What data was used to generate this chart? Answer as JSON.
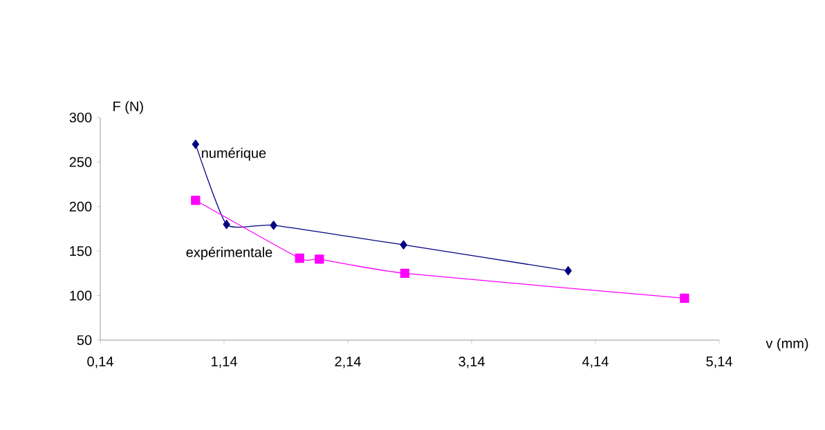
{
  "chart_data": {
    "type": "line",
    "xlabel": "v (mm)",
    "ylabel": "F (N)",
    "xlim": [
      0.14,
      5.14
    ],
    "ylim": [
      50,
      300
    ],
    "xticks": [
      {
        "value": 0.14,
        "label": "0,14"
      },
      {
        "value": 1.14,
        "label": "1,14"
      },
      {
        "value": 2.14,
        "label": "2,14"
      },
      {
        "value": 3.14,
        "label": "3,14"
      },
      {
        "value": 4.14,
        "label": "4,14"
      },
      {
        "value": 5.14,
        "label": "5,14"
      }
    ],
    "yticks": [
      50,
      100,
      150,
      200,
      250,
      300
    ],
    "grid": false,
    "series": [
      {
        "name": "numérique",
        "color": "#000080",
        "marker": "diamond",
        "x": [
          0.91,
          1.16,
          1.54,
          2.59,
          3.92
        ],
        "values": [
          270,
          180,
          179,
          157,
          128
        ]
      },
      {
        "name": "expérimentale",
        "color": "#ff00ff",
        "marker": "square",
        "x": [
          0.91,
          1.75,
          1.91,
          2.6,
          4.86
        ],
        "values": [
          207,
          142,
          141,
          125,
          97
        ]
      }
    ]
  }
}
